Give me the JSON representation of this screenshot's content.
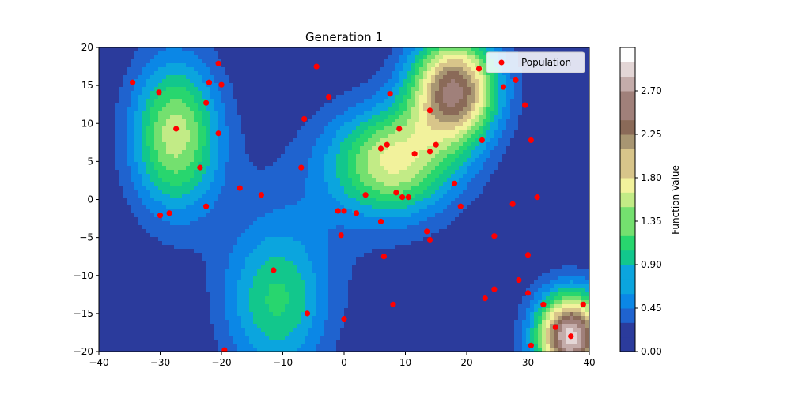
{
  "chart_data": {
    "type": "scatter",
    "title": "Generation 1",
    "xlabel": "",
    "ylabel": "",
    "xlim": [
      -40,
      40
    ],
    "ylim": [
      -20,
      20
    ],
    "xticks": [
      -40,
      -30,
      -20,
      -10,
      0,
      10,
      20,
      30,
      40
    ],
    "yticks": [
      -20,
      -15,
      -10,
      -5,
      0,
      5,
      10,
      15,
      20
    ],
    "grid": false,
    "legend": {
      "placement": "top-right",
      "entries": [
        "Population"
      ]
    },
    "series": [
      {
        "name": "Population",
        "color": "#ff0000",
        "points": [
          [
            -34.5,
            15.4
          ],
          [
            -30.2,
            14.1
          ],
          [
            -20.5,
            17.9
          ],
          [
            -22.0,
            15.4
          ],
          [
            -20.0,
            15.1
          ],
          [
            -22.5,
            12.7
          ],
          [
            -27.4,
            9.3
          ],
          [
            -20.5,
            8.7
          ],
          [
            -23.5,
            4.2
          ],
          [
            -17.0,
            1.5
          ],
          [
            -13.5,
            0.6
          ],
          [
            -22.5,
            -0.9
          ],
          [
            -28.5,
            -1.8
          ],
          [
            -30.0,
            -2.1
          ],
          [
            -19.5,
            -19.8
          ],
          [
            -11.5,
            -9.3
          ],
          [
            -6.0,
            -15.0
          ],
          [
            0.0,
            -15.7
          ],
          [
            -4.5,
            17.5
          ],
          [
            -2.5,
            13.5
          ],
          [
            -6.5,
            10.6
          ],
          [
            -7.0,
            4.2
          ],
          [
            -1.0,
            -1.5
          ],
          [
            0.0,
            -1.5
          ],
          [
            2.0,
            -1.8
          ],
          [
            3.5,
            0.6
          ],
          [
            -0.5,
            -4.7
          ],
          [
            6.0,
            -2.9
          ],
          [
            6.5,
            -7.5
          ],
          [
            8.0,
            -13.8
          ],
          [
            7.5,
            13.9
          ],
          [
            9.0,
            9.3
          ],
          [
            6.0,
            6.7
          ],
          [
            7.0,
            7.2
          ],
          [
            11.5,
            6.0
          ],
          [
            8.5,
            0.9
          ],
          [
            9.5,
            0.3
          ],
          [
            10.5,
            0.3
          ],
          [
            13.5,
            -4.2
          ],
          [
            14.0,
            -5.3
          ],
          [
            14.0,
            11.7
          ],
          [
            14.0,
            6.3
          ],
          [
            15.0,
            7.2
          ],
          [
            18.0,
            2.1
          ],
          [
            19.0,
            -0.9
          ],
          [
            22.5,
            7.8
          ],
          [
            22.0,
            17.2
          ],
          [
            26.0,
            14.8
          ],
          [
            28.0,
            15.7
          ],
          [
            29.5,
            12.4
          ],
          [
            30.5,
            7.8
          ],
          [
            27.5,
            -0.6
          ],
          [
            31.5,
            0.3
          ],
          [
            24.5,
            -4.8
          ],
          [
            30.0,
            -7.3
          ],
          [
            28.5,
            -10.6
          ],
          [
            24.5,
            -11.8
          ],
          [
            23.0,
            -13.0
          ],
          [
            30.0,
            -12.3
          ],
          [
            32.5,
            -13.8
          ],
          [
            34.5,
            -16.8
          ],
          [
            37.0,
            -18.0
          ],
          [
            39.0,
            -13.8
          ],
          [
            30.5,
            -19.2
          ]
        ]
      }
    ],
    "contour": {
      "surface": "sum of gaussian peaks",
      "peaks": [
        {
          "x": 18,
          "y": 14.5,
          "amplitude": 2.4,
          "sx": 5,
          "sy": 5
        },
        {
          "x": 37,
          "y": -18,
          "amplitude": 2.9,
          "sx": 4,
          "sy": 4
        },
        {
          "x": -27.5,
          "y": 8.5,
          "amplitude": 1.5,
          "sx": 5,
          "sy": 7
        },
        {
          "x": -11,
          "y": -13.5,
          "amplitude": 1.0,
          "sx": 6,
          "sy": 7
        },
        {
          "x": 8,
          "y": 5,
          "amplitude": 1.55,
          "sx": 7,
          "sy": 5
        },
        {
          "x": -5,
          "y": 0,
          "amplitude": 0.18,
          "sx": 12,
          "sy": 8
        }
      ],
      "levels_step": 0.15,
      "vmin": 0.0,
      "vmax": 3.0,
      "colormap": [
        "#2b3b9c",
        "#1f63cf",
        "#0b87e6",
        "#0ba5de",
        "#12c78c",
        "#28d66e",
        "#74e06f",
        "#c2eb86",
        "#f2f29c",
        "#d8c58a",
        "#a89672",
        "#8a6a58",
        "#a0807a",
        "#c4acaa",
        "#e3d6d6",
        "#fefefe"
      ]
    },
    "colorbar": {
      "label": "Function Value",
      "ticks": [
        "0.00",
        "0.45",
        "0.90",
        "1.35",
        "1.80",
        "2.25",
        "2.70"
      ],
      "tick_values": [
        0.0,
        0.45,
        0.9,
        1.35,
        1.8,
        2.25,
        2.7
      ],
      "min": 0.0,
      "max": 3.15
    }
  }
}
